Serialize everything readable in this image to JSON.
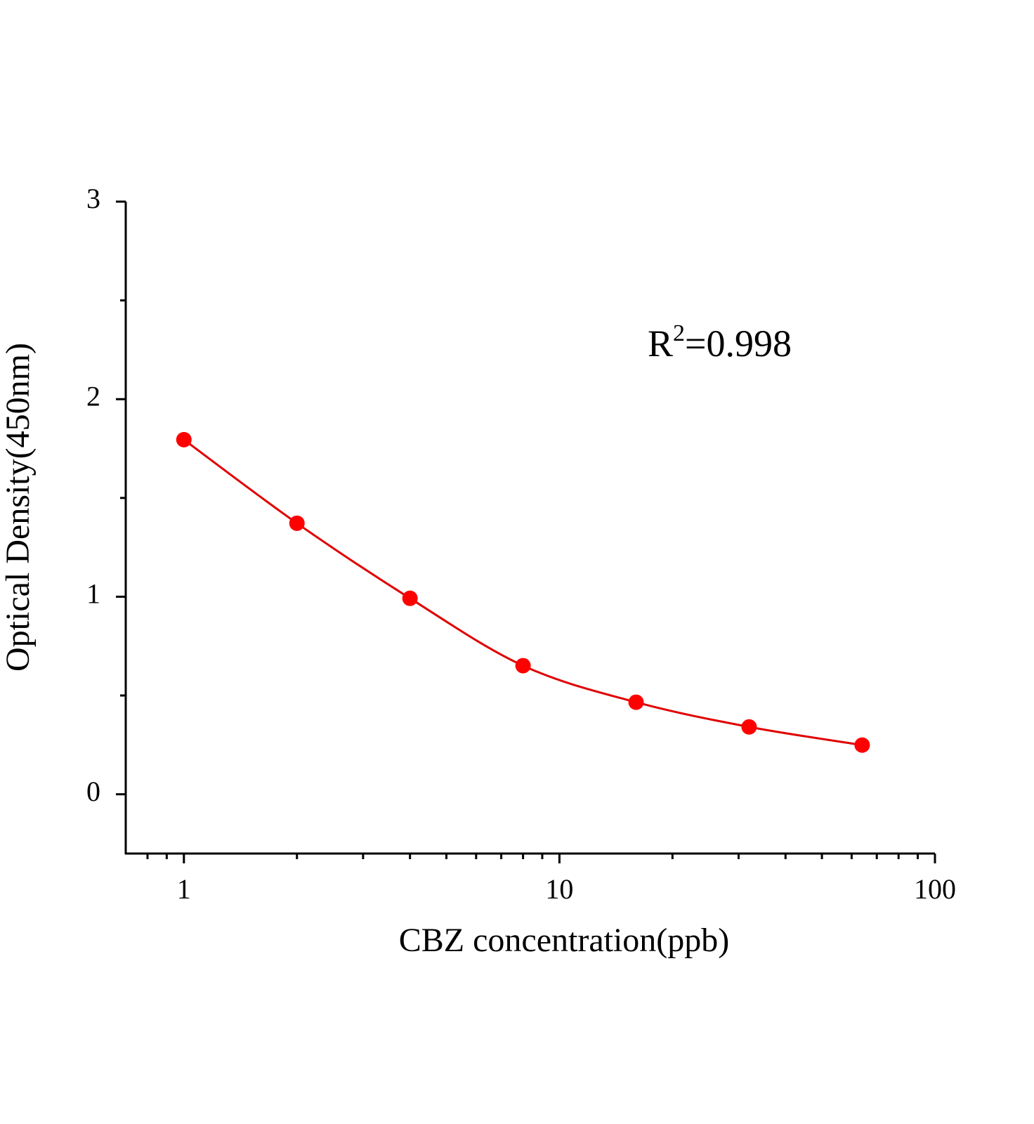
{
  "chart_data": {
    "type": "scatter",
    "x_label": "CBZ concentration(ppb)",
    "y_label": "Optical Density(450nm)",
    "annotation": [
      "R",
      "2",
      "=0.998"
    ],
    "x_log": true,
    "xlim": [
      0.7,
      100
    ],
    "xticks": [
      1,
      10,
      100
    ],
    "xminorticks": [
      0.8,
      0.9,
      2,
      3,
      4,
      5,
      6,
      7,
      8,
      9,
      20,
      30,
      40,
      50,
      60,
      70,
      80,
      90
    ],
    "ylim": [
      -0.3,
      3
    ],
    "yticks": [
      0,
      1,
      2,
      3
    ],
    "yminorticks": [
      0.5,
      1.5,
      2.5
    ],
    "series": [
      {
        "color": "#ff0000",
        "line_color": "#e00000",
        "smooth_line": true,
        "x": [
          1,
          2,
          4,
          8,
          16,
          32,
          64
        ],
        "values": [
          1.795,
          1.372,
          0.992,
          0.651,
          0.466,
          0.341,
          0.249
        ]
      }
    ]
  }
}
